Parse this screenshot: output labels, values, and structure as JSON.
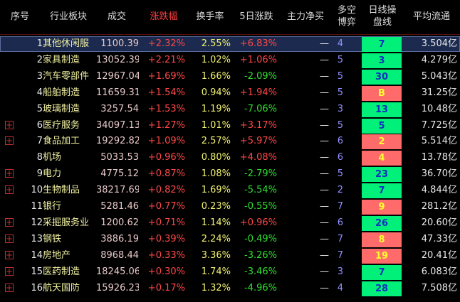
{
  "table": {
    "header": [
      "序号",
      "行业板块",
      "成交",
      "涨跌幅",
      "换手率",
      "5日涨跌",
      "主力净买",
      "多空\n博弈",
      "日线操\n盘线",
      "平均流通"
    ],
    "rows": [
      {
        "cells": [
          "1",
          "其他休闲服",
          "1100.39",
          "+2.32%",
          "2.55%",
          "+6.83%",
          "—",
          "4",
          "7",
          "3.504亿"
        ],
        "signal": "green",
        "expand": false,
        "selected": true
      },
      {
        "cells": [
          "2",
          "家具制造",
          "13052.39",
          "+2.21%",
          "1.02%",
          "+1.06%",
          "—",
          "5",
          "3",
          "4.279亿"
        ],
        "signal": "green",
        "expand": false
      },
      {
        "cells": [
          "3",
          "汽车零部件",
          "12967.04",
          "+1.69%",
          "1.66%",
          "-2.09%",
          "—",
          "5",
          "30",
          "5.043亿"
        ],
        "signal": "green",
        "expand": false
      },
      {
        "cells": [
          "4",
          "船舶制造",
          "11659.31",
          "+1.54%",
          "0.94%",
          "+1.94%",
          "—",
          "5",
          "B",
          "31.25亿"
        ],
        "signal": "red",
        "expand": false
      },
      {
        "cells": [
          "5",
          "玻璃制造",
          "3257.54",
          "+1.53%",
          "1.19%",
          "-7.06%",
          "—",
          "3",
          "13",
          "10.48亿"
        ],
        "signal": "green",
        "expand": false
      },
      {
        "cells": [
          "6",
          "医疗服务",
          "34097.13",
          "+1.27%",
          "1.01%",
          "+3.17%",
          "—",
          "5",
          "5",
          "7.725亿"
        ],
        "signal": "green",
        "expand": true
      },
      {
        "cells": [
          "7",
          "食品加工",
          "19292.82",
          "+1.09%",
          "2.57%",
          "+5.97%",
          "—",
          "6",
          "2",
          "5.514亿"
        ],
        "signal": "red",
        "expand": true
      },
      {
        "cells": [
          "8",
          "机场",
          "5033.53",
          "+0.96%",
          "0.80%",
          "+4.08%",
          "—",
          "6",
          "4",
          "13.78亿"
        ],
        "signal": "red",
        "expand": false
      },
      {
        "cells": [
          "9",
          "电力",
          "4775.12",
          "+0.87%",
          "1.08%",
          "-2.79%",
          "—",
          "5",
          "23",
          "36.70亿"
        ],
        "signal": "green",
        "expand": true
      },
      {
        "cells": [
          "10",
          "生物制品",
          "38217.69",
          "+0.82%",
          "1.69%",
          "-5.54%",
          "—",
          "2",
          "7",
          "4.844亿"
        ],
        "signal": "green",
        "expand": true
      },
      {
        "cells": [
          "11",
          "银行",
          "5281.46",
          "+0.77%",
          "0.23%",
          "-0.55%",
          "—",
          "7",
          "9",
          "281.2亿"
        ],
        "signal": "red",
        "expand": false
      },
      {
        "cells": [
          "12",
          "采掘服务业",
          "1200.62",
          "+0.71%",
          "1.14%",
          "+0.96%",
          "—",
          "6",
          "26",
          "20.60亿"
        ],
        "signal": "green",
        "expand": true
      },
      {
        "cells": [
          "13",
          "钢铁",
          "3886.19",
          "+0.39%",
          "2.24%",
          "-0.49%",
          "—",
          "7",
          "8",
          "47.33亿"
        ],
        "signal": "red",
        "expand": true
      },
      {
        "cells": [
          "14",
          "房地产",
          "8968.44",
          "+0.33%",
          "3.36%",
          "-3.26%",
          "—",
          "7",
          "19",
          "20.41亿"
        ],
        "signal": "red",
        "expand": true
      },
      {
        "cells": [
          "15",
          "医药制造",
          "18245.06",
          "+0.30%",
          "1.74%",
          "-3.46%",
          "—",
          "3",
          "7",
          "6.083亿"
        ],
        "signal": "green",
        "expand": true
      },
      {
        "cells": [
          "16",
          "航天国防",
          "15926.23",
          "+0.17%",
          "1.32%",
          "-4.96%",
          "—",
          "4",
          "28",
          "7.508亿"
        ],
        "signal": "green",
        "expand": true
      }
    ]
  }
}
